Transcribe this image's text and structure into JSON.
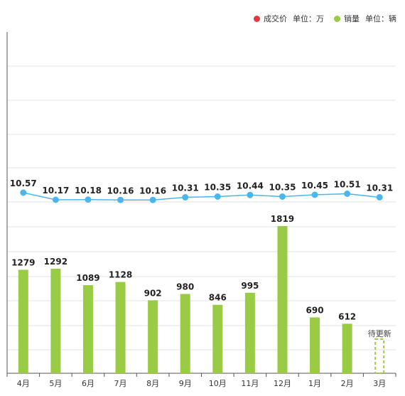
{
  "legend": {
    "price": {
      "label": "成交价",
      "unit": "单位：万",
      "color": "#e0393e"
    },
    "sales": {
      "label": "销量",
      "unit": "单位：辆",
      "color": "#99cc44"
    }
  },
  "chart_data": {
    "type": "bar",
    "categories": [
      "4月",
      "5月",
      "6月",
      "7月",
      "8月",
      "9月",
      "10月",
      "11月",
      "12月",
      "1月",
      "2月",
      "3月"
    ],
    "series": [
      {
        "name": "销量",
        "type": "bar",
        "color": "#99cc44",
        "values": [
          1279,
          1292,
          1089,
          1128,
          902,
          980,
          846,
          995,
          1819,
          690,
          612,
          null
        ]
      },
      {
        "name": "成交价",
        "type": "line",
        "color": "#4bb6ee",
        "values": [
          10.57,
          10.17,
          10.18,
          10.16,
          10.16,
          10.31,
          10.35,
          10.44,
          10.35,
          10.45,
          10.51,
          10.31
        ]
      }
    ],
    "pending": {
      "category": "3月",
      "label": "待更新"
    },
    "grid": true,
    "legend_position": "top-right"
  }
}
